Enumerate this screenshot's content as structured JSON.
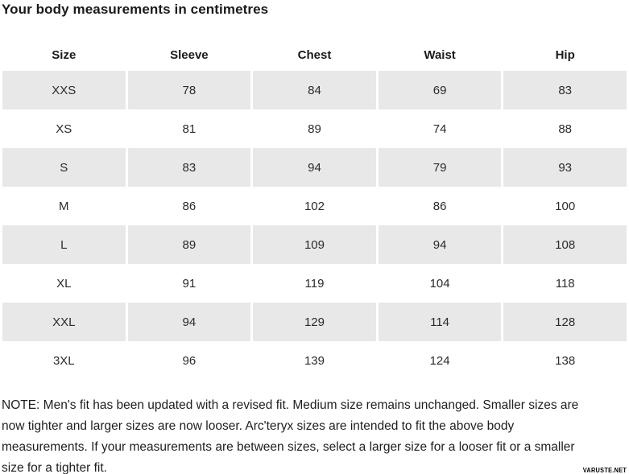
{
  "title": "Your body measurements in centimetres",
  "table": {
    "columns": [
      "Size",
      "Sleeve",
      "Chest",
      "Waist",
      "Hip"
    ],
    "rows": [
      [
        "XXS",
        "78",
        "84",
        "69",
        "83"
      ],
      [
        "XS",
        "81",
        "89",
        "74",
        "88"
      ],
      [
        "S",
        "83",
        "94",
        "79",
        "93"
      ],
      [
        "M",
        "86",
        "102",
        "86",
        "100"
      ],
      [
        "L",
        "89",
        "109",
        "94",
        "108"
      ],
      [
        "XL",
        "91",
        "119",
        "104",
        "118"
      ],
      [
        "XXL",
        "94",
        "129",
        "114",
        "128"
      ],
      [
        "3XL",
        "96",
        "139",
        "124",
        "138"
      ]
    ]
  },
  "note": {
    "lines": [
      "NOTE: Men's fit has been updated with a revised fit. Medium size remains unchanged. Smaller sizes are",
      "now tighter and larger sizes are now looser. Arc'teryx sizes are intended to fit the above body",
      "measurements. If your measurements are between sizes, select a larger size for a looser fit or a smaller",
      "size for a tighter fit."
    ]
  },
  "watermark": "VARUSTE.NET",
  "colors": {
    "stripe": "#e8e8e8",
    "text": "#1a1a1a"
  }
}
